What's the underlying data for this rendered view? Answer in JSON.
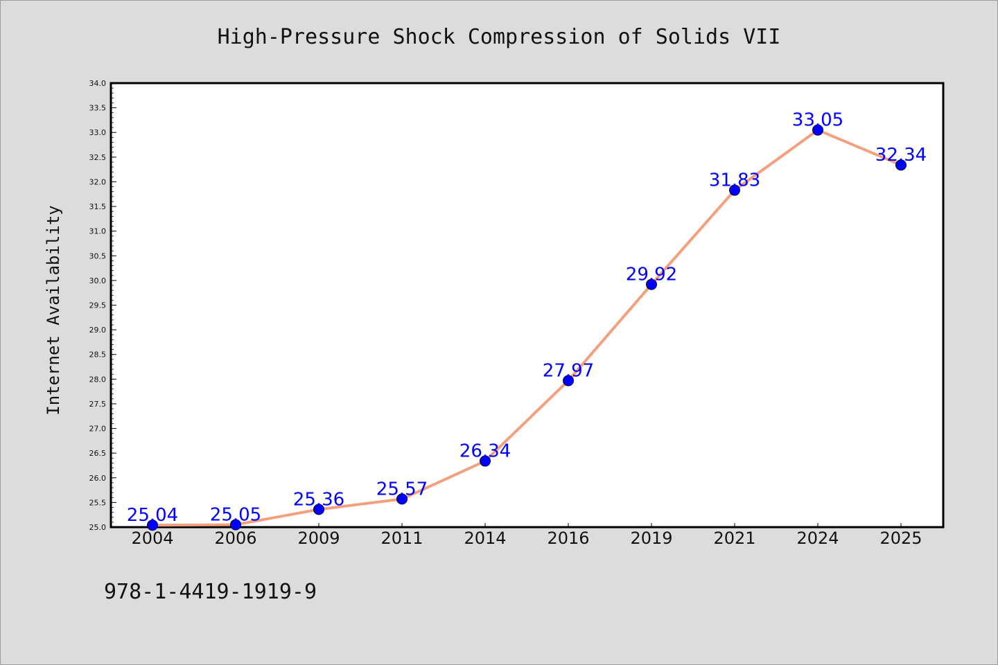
{
  "chart_data": {
    "type": "line",
    "title": "High-Pressure Shock Compression of Solids VII",
    "xlabel": "",
    "ylabel": "Internet Availability",
    "categories": [
      "2004",
      "2006",
      "2009",
      "2011",
      "2014",
      "2016",
      "2019",
      "2021",
      "2024",
      "2025"
    ],
    "values": [
      25.04,
      25.05,
      25.36,
      25.57,
      26.34,
      27.97,
      29.92,
      31.83,
      33.05,
      32.34
    ],
    "data_labels": [
      "25.04",
      "25.05",
      "25.36",
      "25.57",
      "26.34",
      "27.97",
      "29.92",
      "31.83",
      "33.05",
      "32.34"
    ],
    "ylim": [
      25.0,
      34.0
    ],
    "y_ticks": [
      "25.0",
      "25.5",
      "26.0",
      "26.5",
      "27.0",
      "27.5",
      "28.0",
      "28.5",
      "29.0",
      "29.5",
      "30.0",
      "30.5",
      "31.0",
      "31.5",
      "32.0",
      "32.5",
      "33.0",
      "33.5",
      "34.0"
    ],
    "grid": false,
    "line_color": "#f4a07f",
    "marker_color": "#0000ff",
    "label_color": "#0000ff",
    "plot_background": "#ffffff",
    "page_background": "#dcdcdc"
  },
  "footer": {
    "isbn": "978-1-4419-1919-9"
  }
}
